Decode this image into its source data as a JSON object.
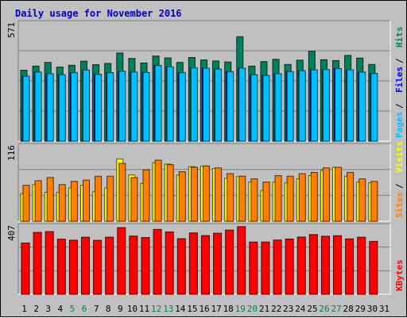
{
  "title": "Daily usage for November 2016",
  "colors": {
    "hits": "#00805c",
    "files": "#0000ff",
    "pages": "#00c0ff",
    "visits": "#ffff00",
    "sites": "#ff8000",
    "kbytes": "#ff0000",
    "title": "#0000c0",
    "weekend": "#00805c",
    "weekday": "#000000"
  },
  "chart_data": [
    {
      "type": "bar",
      "panel": "top",
      "ymax_label": "571",
      "ylim": [
        0,
        571
      ],
      "categories": [
        "1",
        "2",
        "3",
        "4",
        "5",
        "6",
        "7",
        "8",
        "9",
        "10",
        "11",
        "12",
        "13",
        "14",
        "15",
        "16",
        "17",
        "18",
        "19",
        "20",
        "21",
        "22",
        "23",
        "24",
        "25",
        "26",
        "27",
        "28",
        "29",
        "30",
        "31"
      ],
      "weekend_days": [
        "5",
        "6",
        "12",
        "13",
        "19",
        "20",
        "26",
        "27"
      ],
      "series": [
        {
          "name": "Hits",
          "values": [
            345,
            365,
            383,
            360,
            369,
            389,
            372,
            378,
            429,
            402,
            380,
            414,
            405,
            383,
            407,
            395,
            390,
            385,
            508,
            365,
            387,
            398,
            373,
            394,
            437,
            396,
            392,
            417,
            404,
            373,
            null
          ]
        },
        {
          "name": "Files",
          "values": [
            316,
            336,
            328,
            323,
            333,
            346,
            325,
            333,
            340,
            336,
            334,
            368,
            362,
            333,
            356,
            355,
            350,
            338,
            355,
            323,
            319,
            328,
            338,
            343,
            347,
            348,
            353,
            347,
            336,
            329,
            null
          ]
        },
        {
          "name": "Pages",
          "values": [
            316,
            336,
            328,
            323,
            333,
            346,
            325,
            333,
            340,
            336,
            334,
            368,
            362,
            333,
            356,
            355,
            350,
            338,
            355,
            323,
            319,
            328,
            338,
            343,
            347,
            348,
            353,
            347,
            336,
            329,
            null
          ]
        }
      ],
      "side_labels": [
        "Pages",
        "Files",
        "Hits"
      ]
    },
    {
      "type": "bar",
      "panel": "middle",
      "ymax_label": "116",
      "ylim": [
        0,
        116
      ],
      "categories": [
        "1",
        "2",
        "3",
        "4",
        "5",
        "6",
        "7",
        "8",
        "9",
        "10",
        "11",
        "12",
        "13",
        "14",
        "15",
        "16",
        "17",
        "18",
        "19",
        "20",
        "21",
        "22",
        "23",
        "24",
        "25",
        "26",
        "27",
        "28",
        "29",
        "30",
        "31"
      ],
      "series": [
        {
          "name": "Visits",
          "values": [
            43,
            57,
            45,
            45,
            52,
            56,
            46,
            52,
            97,
            72,
            59,
            91,
            89,
            72,
            85,
            86,
            82,
            67,
            70,
            61,
            48,
            61,
            60,
            66,
            71,
            79,
            84,
            70,
            61,
            60,
            null
          ]
        },
        {
          "name": "Sites",
          "values": [
            56,
            63,
            68,
            57,
            62,
            64,
            70,
            70,
            90,
            68,
            80,
            95,
            88,
            77,
            84,
            86,
            83,
            74,
            70,
            66,
            61,
            71,
            70,
            74,
            76,
            83,
            84,
            76,
            66,
            62,
            null
          ]
        }
      ],
      "side_labels": [
        "Sites",
        "Visits"
      ]
    },
    {
      "type": "bar",
      "panel": "bottom",
      "ymax_label": "407",
      "ylim": [
        0,
        407
      ],
      "categories": [
        "1",
        "2",
        "3",
        "4",
        "5",
        "6",
        "7",
        "8",
        "9",
        "10",
        "11",
        "12",
        "13",
        "14",
        "15",
        "16",
        "17",
        "18",
        "19",
        "20",
        "21",
        "22",
        "23",
        "24",
        "25",
        "26",
        "27",
        "28",
        "29",
        "30",
        "31"
      ],
      "series": [
        {
          "name": "KBytes",
          "values": [
            309,
            373,
            378,
            332,
            326,
            344,
            325,
            344,
            402,
            351,
            342,
            391,
            376,
            335,
            370,
            354,
            368,
            387,
            408,
            315,
            315,
            327,
            333,
            345,
            360,
            350,
            353,
            334,
            344,
            319,
            null
          ]
        }
      ],
      "side_labels": [
        "KBytes"
      ]
    }
  ]
}
